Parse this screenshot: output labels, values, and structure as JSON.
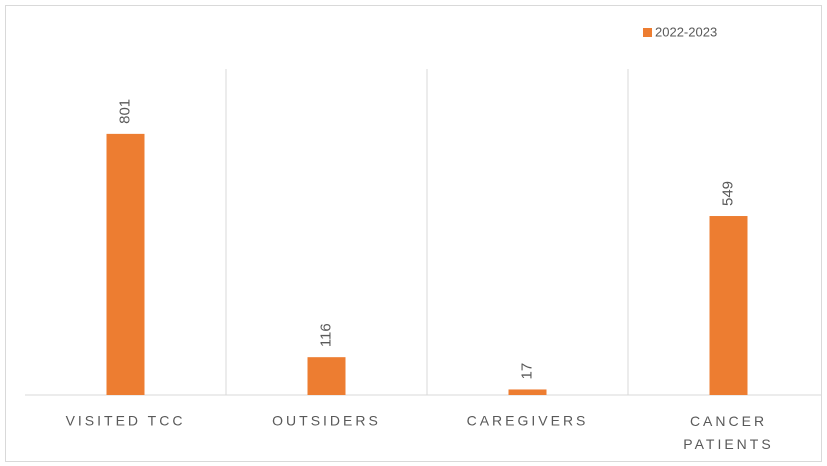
{
  "chart_data": {
    "type": "bar",
    "categories": [
      "VISITED TCC",
      "OUTSIDERS",
      "CAREGIVERS",
      "CANCER PATIENTS"
    ],
    "series": [
      {
        "name": "2022-2023",
        "color": "#ed7d31",
        "values": [
          801,
          116,
          17,
          549
        ]
      }
    ],
    "ylim": [
      0,
      1000
    ],
    "legend": "top-right"
  }
}
